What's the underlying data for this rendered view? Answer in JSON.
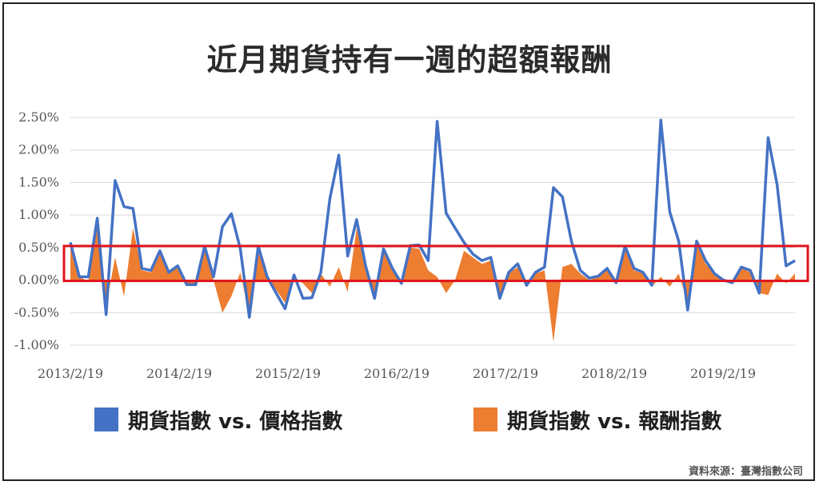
{
  "title": "近月期貨持有一週的超額報酬",
  "source": "資料來源：臺灣指數公司",
  "legend": [
    {
      "label": "期貨指數 vs. 價格指數",
      "color": "#4472C4"
    },
    {
      "label": "期貨指數 vs. 報酬指數",
      "color": "#ED7D31"
    }
  ],
  "highlight_color": "#E0141E",
  "chart_data": {
    "type": "line",
    "title": "近月期貨持有一週的超額報酬",
    "ylim": [
      -1.0,
      2.5
    ],
    "yticks": [
      "2.50%",
      "2.00%",
      "1.50%",
      "1.00%",
      "0.50%",
      "0.00%",
      "-0.50%",
      "-1.00%"
    ],
    "xticks": [
      "2013/2/19",
      "2014/2/19",
      "2015/2/19",
      "2016/2/19",
      "2017/2/19",
      "2018/2/19",
      "2019/2/19"
    ],
    "grid": true,
    "highlight_range": [
      0.0,
      0.5
    ],
    "series": [
      {
        "name": "期貨指數 vs. 價格指數",
        "type": "line",
        "color": "#4472C4",
        "values": [
          0.58,
          0.05,
          0.05,
          0.95,
          -0.53,
          1.53,
          1.13,
          1.1,
          0.18,
          0.15,
          0.45,
          0.12,
          0.22,
          -0.07,
          -0.07,
          0.52,
          0.05,
          0.82,
          1.02,
          0.48,
          -0.57,
          0.52,
          0.05,
          -0.2,
          -0.44,
          0.08,
          -0.28,
          -0.27,
          0.12,
          1.25,
          1.92,
          0.37,
          0.93,
          0.22,
          -0.28,
          0.48,
          0.18,
          -0.05,
          0.53,
          0.54,
          0.3,
          2.44,
          1.03,
          0.8,
          0.58,
          0.4,
          0.3,
          0.35,
          -0.28,
          0.12,
          0.25,
          -0.08,
          0.12,
          0.2,
          1.42,
          1.28,
          0.6,
          0.15,
          0.03,
          0.06,
          0.18,
          -0.04,
          0.52,
          0.18,
          0.12,
          -0.08,
          2.46,
          1.05,
          0.6,
          -0.46,
          0.6,
          0.3,
          0.1,
          0.0,
          -0.04,
          0.2,
          0.15,
          -0.2,
          2.19,
          1.47,
          0.22,
          0.3
        ]
      },
      {
        "name": "期貨指數 vs. 報酬指數",
        "type": "area",
        "color": "#ED7D31",
        "values": [
          0.5,
          0.05,
          -0.02,
          0.85,
          -0.4,
          0.35,
          -0.25,
          0.8,
          0.15,
          0.12,
          0.4,
          0.1,
          0.2,
          -0.05,
          -0.05,
          0.45,
          0.0,
          -0.5,
          -0.25,
          0.12,
          -0.55,
          0.45,
          0.02,
          -0.15,
          -0.35,
          0.05,
          -0.05,
          -0.2,
          0.1,
          -0.1,
          0.2,
          -0.18,
          0.8,
          0.2,
          -0.25,
          0.45,
          0.15,
          -0.05,
          0.5,
          0.48,
          0.15,
          0.05,
          -0.2,
          0.0,
          0.45,
          0.35,
          0.25,
          0.3,
          -0.25,
          0.1,
          0.2,
          -0.05,
          0.1,
          0.15,
          -0.95,
          0.2,
          0.25,
          0.1,
          0.0,
          0.05,
          0.15,
          -0.05,
          0.5,
          0.15,
          0.1,
          -0.1,
          0.05,
          -0.1,
          0.1,
          -0.35,
          0.55,
          0.25,
          0.1,
          0.0,
          -0.03,
          0.18,
          0.12,
          -0.2,
          -0.23,
          0.1,
          -0.05,
          0.1
        ]
      }
    ]
  }
}
